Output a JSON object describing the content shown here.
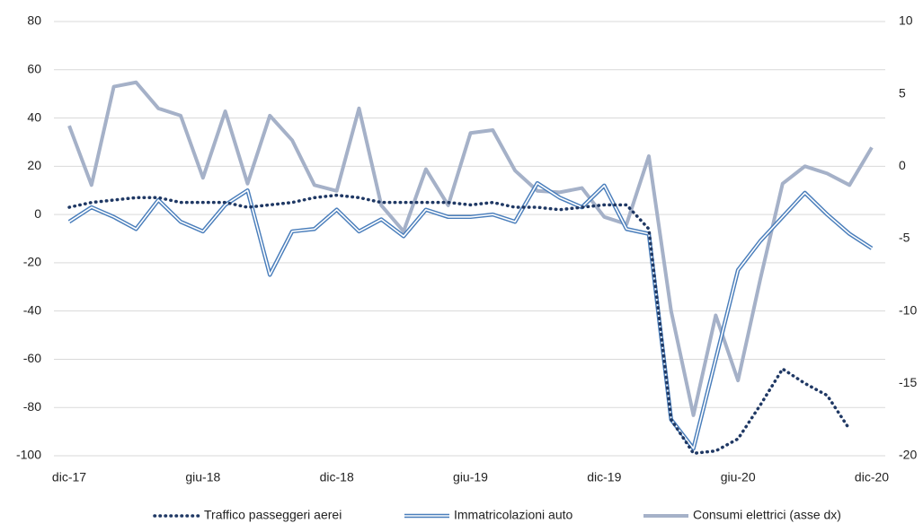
{
  "chart_data": {
    "type": "line",
    "categories": [
      "dic-17",
      null,
      null,
      null,
      null,
      null,
      "giu-18",
      null,
      null,
      null,
      null,
      null,
      "dic-18",
      null,
      null,
      null,
      null,
      null,
      "giu-19",
      null,
      null,
      null,
      null,
      null,
      "dic-19",
      null,
      null,
      null,
      null,
      null,
      "giu-20",
      null,
      null,
      null,
      null,
      null,
      "dic-20"
    ],
    "ylim": [
      -100,
      80
    ],
    "yticks": [
      -100,
      -80,
      -60,
      -40,
      -20,
      0,
      20,
      40,
      60,
      80
    ],
    "y2lim": [
      -20,
      10
    ],
    "y2ticks": [
      -20,
      -15,
      -10,
      -5,
      0,
      5,
      10
    ],
    "grid": true,
    "legend": "bottom",
    "series": [
      {
        "name": "Traffico passeggeri aerei",
        "color": "#1f3864",
        "values": [
          3,
          5,
          6,
          7,
          7,
          5,
          5,
          5,
          3,
          4,
          5,
          7,
          8,
          7,
          5,
          5,
          5,
          5,
          4,
          5,
          3,
          3,
          2,
          3,
          4,
          4,
          -6,
          -85,
          -99,
          -98,
          -93,
          -79,
          -64,
          -70,
          -75,
          -89,
          null
        ]
      },
      {
        "name": "Immatricolazioni auto",
        "color": "#4a7ebb",
        "values": [
          -3,
          3,
          -1,
          -6,
          6,
          -3,
          -7,
          4,
          10,
          -25,
          -7,
          -6,
          2,
          -7,
          -2,
          -9,
          2,
          -1,
          -1,
          0,
          -3,
          13,
          7,
          3,
          12,
          -6,
          -8,
          -85,
          -97,
          -60,
          -23,
          -11,
          -1,
          9,
          0,
          -8,
          -14
        ]
      },
      {
        "name": "Consumi elettrici (asse dx)",
        "color": "#a5b1c8",
        "axis": "y2",
        "values": [
          2.8,
          -1.3,
          5.5,
          5.8,
          4.0,
          3.5,
          -0.8,
          3.8,
          -1.2,
          3.5,
          1.8,
          -1.3,
          -1.7,
          4.0,
          -2.7,
          -4.5,
          -0.2,
          -2.7,
          2.3,
          2.5,
          -0.3,
          -1.7,
          -1.8,
          -1.5,
          -3.5,
          -4.0,
          0.7,
          -10,
          -17.2,
          -10.3,
          -14.8,
          -7.8,
          -1.2,
          0,
          -0.5,
          -1.3,
          1.3
        ]
      }
    ]
  }
}
